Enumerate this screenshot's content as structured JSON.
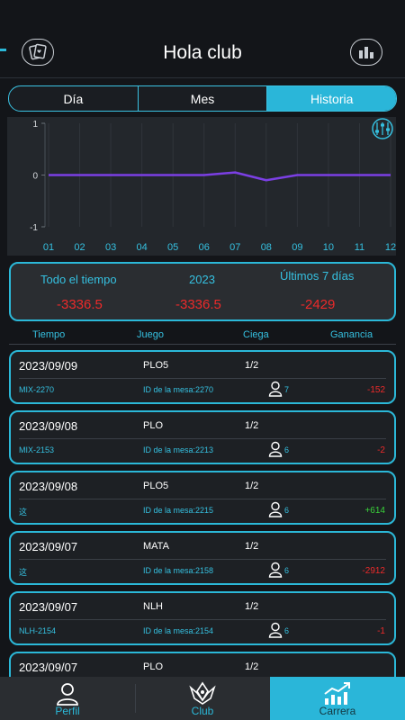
{
  "header": {
    "title": "Hola club",
    "left_icon": "cards-icon",
    "right_icon": "stats-icon"
  },
  "tabs": [
    {
      "label": "Día",
      "active": false
    },
    {
      "label": "Mes",
      "active": false
    },
    {
      "label": "Historia",
      "active": true
    }
  ],
  "chart_data": {
    "type": "line",
    "x": [
      "01",
      "02",
      "03",
      "04",
      "05",
      "06",
      "07",
      "08",
      "09",
      "10",
      "11",
      "12"
    ],
    "series": [
      {
        "values": [
          0,
          0,
          0,
          0,
          0,
          0,
          0.05,
          -0.1,
          0,
          0,
          0,
          0
        ]
      }
    ],
    "yticks": [
      "1",
      "0",
      "-1"
    ],
    "ylim": [
      -1,
      1
    ],
    "grid": "vertical",
    "line_color": "#7b3fe4"
  },
  "summary": {
    "all_time_label": "Todo el tiempo",
    "all_time_value": "-3336.5",
    "year_label": "2023",
    "year_value": "-3336.5",
    "week_label": "Últimos 7 días",
    "week_value": "-2429"
  },
  "columns": {
    "time": "Tiempo",
    "game": "Juego",
    "blind": "Ciega",
    "gain": "Ganancia"
  },
  "records": [
    {
      "date": "2023/09/09",
      "game": "PLO5",
      "blind": "1/2",
      "code": "MIX-2270",
      "table": "ID de la mesa:2270",
      "players": "7",
      "gain": "-152",
      "positive": false
    },
    {
      "date": "2023/09/08",
      "game": "PLO",
      "blind": "1/2",
      "code": "MIX-2153",
      "table": "ID de la mesa:2213",
      "players": "6",
      "gain": "-2",
      "positive": false
    },
    {
      "date": "2023/09/08",
      "game": "PLO5",
      "blind": "1/2",
      "code": "这",
      "table": "ID de la mesa:2215",
      "players": "6",
      "gain": "+614",
      "positive": true
    },
    {
      "date": "2023/09/07",
      "game": "MATA",
      "blind": "1/2",
      "code": "这",
      "table": "ID de la mesa:2158",
      "players": "6",
      "gain": "-2912",
      "positive": false
    },
    {
      "date": "2023/09/07",
      "game": "NLH",
      "blind": "1/2",
      "code": "NLH-2154",
      "table": "ID de la mesa:2154",
      "players": "6",
      "gain": "-1",
      "positive": false
    },
    {
      "date": "2023/09/07",
      "game": "PLO",
      "blind": "1/2",
      "code": "",
      "table": "",
      "players": "",
      "gain": "",
      "positive": false
    }
  ],
  "nav": [
    {
      "label": "Perfil",
      "icon": "user-icon",
      "active": false
    },
    {
      "label": "Club",
      "icon": "crown-icon",
      "active": false
    },
    {
      "label": "Carrera",
      "icon": "chart-up-icon",
      "active": true
    }
  ]
}
